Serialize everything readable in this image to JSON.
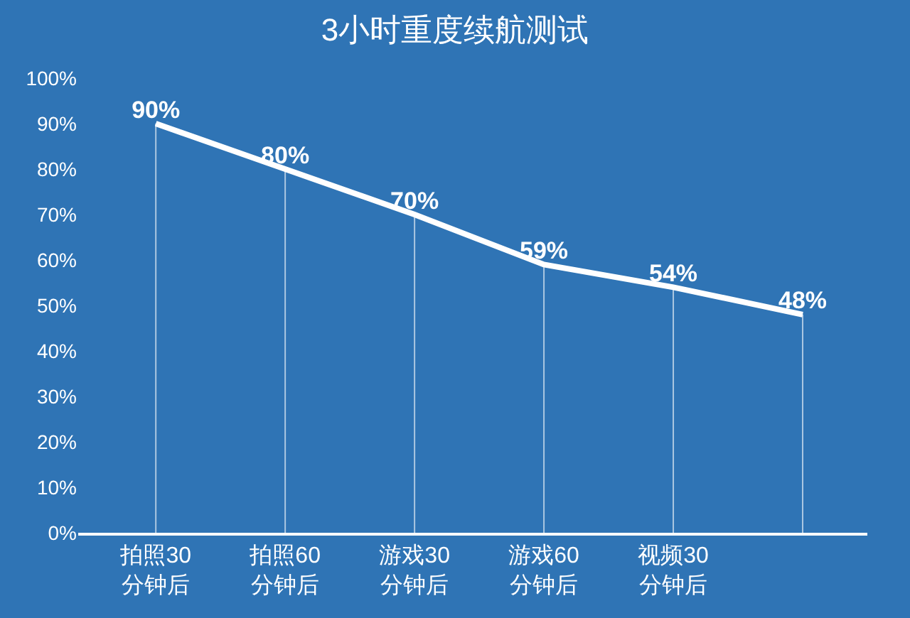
{
  "chart_data": {
    "type": "line",
    "title": "3小时重度续航测试",
    "categories": [
      "拍照30\n分钟后",
      "拍照60\n分钟后",
      "游戏30\n分钟后",
      "游戏60\n分钟后",
      "视频30\n分钟后",
      null
    ],
    "series": [
      {
        "color": "#ffffff",
        "values": [
          90,
          80,
          70,
          59,
          54,
          48
        ]
      }
    ],
    "value_labels": [
      "90%",
      "80%",
      "70%",
      "59%",
      "54%",
      "48%"
    ],
    "ylim": [
      0,
      100
    ],
    "yticks": [
      {
        "value": 0,
        "label": "0%"
      },
      {
        "value": 10,
        "label": "10%"
      },
      {
        "value": 20,
        "label": "20%"
      },
      {
        "value": 30,
        "label": "30%"
      },
      {
        "value": 40,
        "label": "40%"
      },
      {
        "value": 50,
        "label": "50%"
      },
      {
        "value": 60,
        "label": "60%"
      },
      {
        "value": 70,
        "label": "70%"
      },
      {
        "value": 80,
        "label": "80%"
      },
      {
        "value": 90,
        "label": "90%"
      },
      {
        "value": 100,
        "label": "100%"
      }
    ],
    "grid": "x",
    "marker": "none",
    "line_style": "solid"
  }
}
